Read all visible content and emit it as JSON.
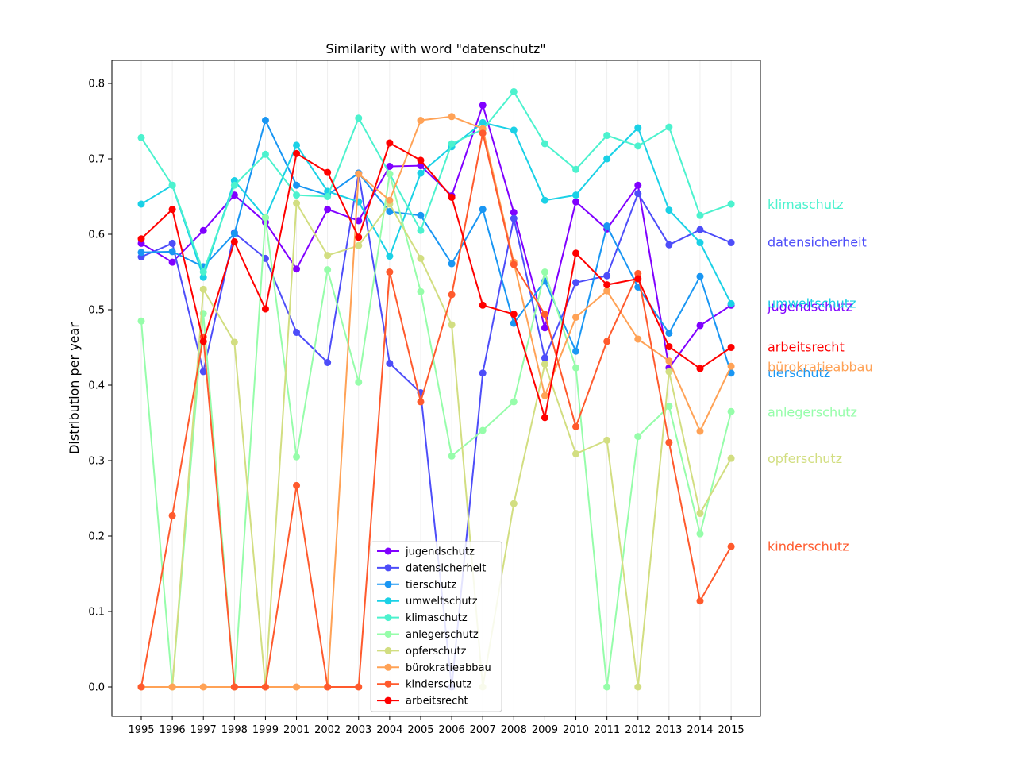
{
  "chart_data": {
    "type": "line",
    "title": "Similarity with word \"datenschutz\"",
    "xlabel": "",
    "ylabel": "Distribution per year",
    "x": [
      "1995",
      "1996",
      "1997",
      "1998",
      "1999",
      "2001",
      "2002",
      "2003",
      "2004",
      "2005",
      "2006",
      "2007",
      "2008",
      "2009",
      "2010",
      "2011",
      "2012",
      "2013",
      "2014",
      "2015"
    ],
    "ylim": [
      -0.04,
      0.83
    ],
    "yticks": [
      "0.0",
      "0.1",
      "0.2",
      "0.3",
      "0.4",
      "0.5",
      "0.6",
      "0.7",
      "0.8"
    ],
    "grid": "vertical",
    "legend": "lower-center",
    "series": [
      {
        "name": "jugendschutz",
        "color": "#8000ff",
        "label_y": 0.505,
        "values": [
          0.588,
          0.563,
          0.605,
          0.652,
          0.616,
          0.554,
          0.633,
          0.618,
          0.69,
          0.691,
          0.651,
          0.771,
          0.629,
          0.476,
          0.643,
          0.607,
          0.665,
          0.423,
          0.479,
          0.506
        ]
      },
      {
        "name": "datensicherheit",
        "color": "#4d4df9",
        "label_y": 0.59,
        "values": [
          0.57,
          0.588,
          0.418,
          0.602,
          0.568,
          0.47,
          0.43,
          0.681,
          0.429,
          0.39,
          0.0,
          0.416,
          0.621,
          0.436,
          0.536,
          0.545,
          0.654,
          0.586,
          0.606,
          0.589
        ]
      },
      {
        "name": "tierschutz",
        "color": "#1996f3",
        "label_y": 0.417,
        "values": [
          0.576,
          0.577,
          0.557,
          0.601,
          0.751,
          0.665,
          0.652,
          0.681,
          0.63,
          0.625,
          0.561,
          0.633,
          0.482,
          0.538,
          0.445,
          0.611,
          0.53,
          0.469,
          0.544,
          0.416
        ]
      },
      {
        "name": "umweltschutz",
        "color": "#1ad1e6",
        "label_y": 0.509,
        "values": [
          0.64,
          0.665,
          0.543,
          0.671,
          0.622,
          0.718,
          0.657,
          0.643,
          0.571,
          0.681,
          0.716,
          0.748,
          0.738,
          0.645,
          0.652,
          0.7,
          0.741,
          0.632,
          0.589,
          0.508
        ]
      },
      {
        "name": "klimaschutz",
        "color": "#4cf2ce",
        "label_y": 0.64,
        "values": [
          0.728,
          0.665,
          0.55,
          0.665,
          0.706,
          0.652,
          0.65,
          0.754,
          0.68,
          0.605,
          0.72,
          0.739,
          0.789,
          0.72,
          0.686,
          0.731,
          0.717,
          0.742,
          0.625,
          0.64
        ]
      },
      {
        "name": "anlegerschutz",
        "color": "#96fdaa",
        "label_y": 0.365,
        "values": [
          0.485,
          0.0,
          0.495,
          0.0,
          0.622,
          0.305,
          0.553,
          0.404,
          0.68,
          0.524,
          0.306,
          0.34,
          0.378,
          0.55,
          0.423,
          0.0,
          0.332,
          0.372,
          0.203,
          0.365
        ]
      },
      {
        "name": "opferschutz",
        "color": "#d2de81",
        "label_y": 0.303,
        "values": [
          0.0,
          0.0,
          0.527,
          0.457,
          0.0,
          0.641,
          0.572,
          0.585,
          0.64,
          0.568,
          0.48,
          0.0,
          0.243,
          0.428,
          0.309,
          0.327,
          0.0,
          0.418,
          0.23,
          0.303
        ]
      },
      {
        "name": "bürokratieabbau",
        "color": "#ffa256",
        "label_y": 0.425,
        "values": [
          0.0,
          0.0,
          0.0,
          0.0,
          0.0,
          0.0,
          0.0,
          0.68,
          0.645,
          0.751,
          0.756,
          0.74,
          0.563,
          0.386,
          0.49,
          0.525,
          0.461,
          0.432,
          0.339,
          0.425
        ]
      },
      {
        "name": "kinderschutz",
        "color": "#ff5a2d",
        "label_y": 0.187,
        "values": [
          0.0,
          0.227,
          0.464,
          0.0,
          0.0,
          0.267,
          0.0,
          0.0,
          0.55,
          0.378,
          0.52,
          0.734,
          0.56,
          0.494,
          0.345,
          0.458,
          0.548,
          0.324,
          0.114,
          0.186
        ]
      },
      {
        "name": "arbeitsrecht",
        "color": "#ff0000",
        "label_y": 0.451,
        "values": [
          0.594,
          0.633,
          0.458,
          0.59,
          0.501,
          0.707,
          0.682,
          0.596,
          0.721,
          0.698,
          0.649,
          0.506,
          0.494,
          0.357,
          0.575,
          0.533,
          0.541,
          0.451,
          0.422,
          0.45
        ]
      }
    ]
  }
}
